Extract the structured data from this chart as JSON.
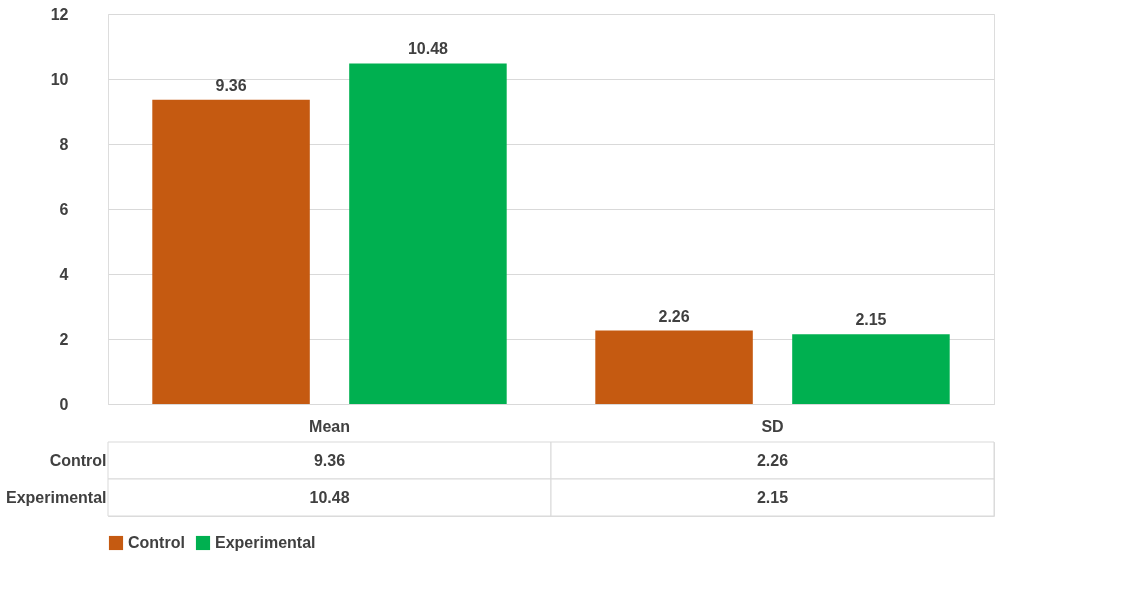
{
  "chart_data": {
    "type": "bar",
    "categories": [
      "Mean",
      "SD"
    ],
    "series": [
      {
        "name": "Control",
        "color": "#c55a11",
        "values": [
          9.36,
          2.26
        ]
      },
      {
        "name": "Experimental",
        "color": "#00b050",
        "values": [
          10.48,
          2.15
        ]
      }
    ],
    "annotations": [
      "9.36",
      "2.26",
      "10.48",
      "2.15"
    ],
    "ylim": [
      0,
      12
    ],
    "yticks": [
      0,
      2,
      4,
      6,
      8,
      10,
      12
    ],
    "grid": "y",
    "data_labels": true,
    "legend": "bottom"
  }
}
